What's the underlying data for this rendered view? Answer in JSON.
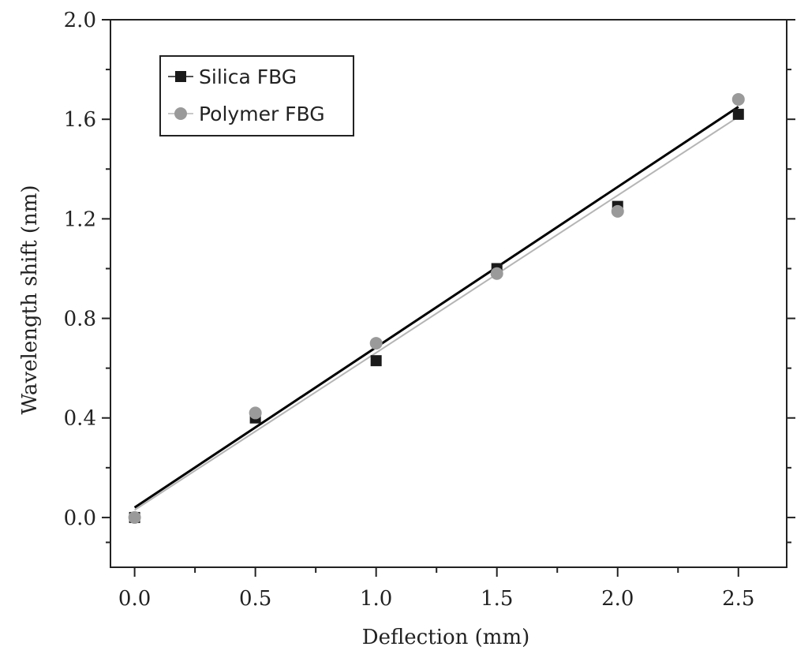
{
  "chart_data": {
    "type": "scatter",
    "title": "",
    "xlabel": "Deflection (mm)",
    "ylabel": "Wavelength shift (nm)",
    "xlim": [
      -0.1,
      2.7
    ],
    "ylim": [
      -0.2,
      2.0
    ],
    "xticks": [
      0.0,
      0.5,
      1.0,
      1.5,
      2.0,
      2.5
    ],
    "xtick_labels": [
      "0.0",
      "0.5",
      "1.0",
      "1.5",
      "2.0",
      "2.5"
    ],
    "yticks": [
      0.0,
      0.4,
      0.8,
      1.2,
      1.6,
      2.0
    ],
    "ytick_labels": [
      "0.0",
      "0.4",
      "0.8",
      "1.2",
      "1.6",
      "2.0"
    ],
    "grid": false,
    "legend_position": "top-left",
    "series": [
      {
        "name": "Silica FBG",
        "marker": "square",
        "color": "#1a1a1a",
        "x": [
          0.0,
          0.5,
          1.0,
          1.5,
          2.0,
          2.5
        ],
        "y": [
          0.0,
          0.4,
          0.63,
          1.0,
          1.25,
          1.62
        ],
        "fit": {
          "x": [
            0.0,
            2.5
          ],
          "y": [
            0.04,
            1.65
          ],
          "color": "#000000"
        }
      },
      {
        "name": "Polymer FBG",
        "marker": "circle",
        "color": "#9a9a9a",
        "x": [
          0.0,
          0.5,
          1.0,
          1.5,
          2.0,
          2.5
        ],
        "y": [
          0.0,
          0.42,
          0.7,
          0.98,
          1.23,
          1.68
        ],
        "fit": {
          "x": [
            0.0,
            2.5
          ],
          "y": [
            0.03,
            1.61
          ],
          "color": "#b5b5b5"
        }
      }
    ]
  }
}
